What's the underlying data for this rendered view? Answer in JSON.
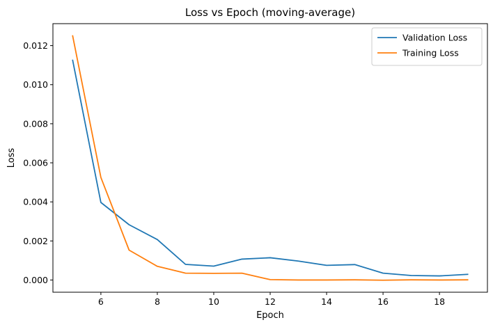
{
  "chart_data": {
    "type": "line",
    "title": "Loss vs Epoch (moving-average)",
    "xlabel": "Epoch",
    "ylabel": "Loss",
    "xlim": [
      4.3,
      19.7
    ],
    "ylim": [
      -0.000625,
      0.013125
    ],
    "xticks": [
      6,
      8,
      10,
      12,
      14,
      16,
      18
    ],
    "yticks": [
      0.0,
      0.002,
      0.004,
      0.006,
      0.008,
      0.01,
      0.012
    ],
    "ytick_labels": [
      "0.000",
      "0.002",
      "0.004",
      "0.006",
      "0.008",
      "0.010",
      "0.012"
    ],
    "grid": false,
    "legend_position": "top-right",
    "x": [
      5,
      6,
      7,
      8,
      9,
      10,
      11,
      12,
      13,
      14,
      15,
      16,
      17,
      18,
      19
    ],
    "series": [
      {
        "name": "Validation Loss",
        "color": "#1f77b4",
        "values": [
          0.01125,
          0.00397,
          0.00283,
          0.00207,
          0.0008,
          0.00071,
          0.00107,
          0.00114,
          0.00097,
          0.00075,
          0.00079,
          0.00035,
          0.00023,
          0.00021,
          0.00029
        ]
      },
      {
        "name": "Training Loss",
        "color": "#ff7f0e",
        "values": [
          0.0125,
          0.00525,
          0.00153,
          0.0007,
          0.00035,
          0.00034,
          0.00035,
          2e-05,
          0.0,
          0.0,
          1e-05,
          -1e-05,
          1e-05,
          0.0,
          1e-05
        ]
      }
    ]
  }
}
